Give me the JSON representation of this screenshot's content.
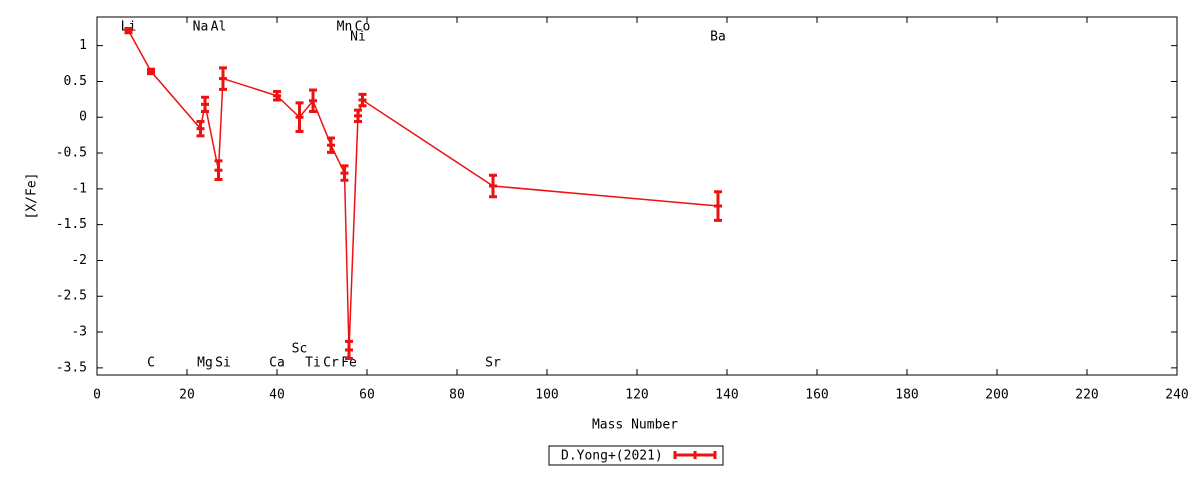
{
  "chart_data": {
    "type": "errorline",
    "xlabel": "Mass Number",
    "ylabel": "[X/Fe]",
    "x": [
      7,
      12,
      23,
      24,
      27,
      28,
      40,
      45,
      48,
      52,
      55,
      56,
      58,
      59,
      88,
      138
    ],
    "point_labels": [
      "Li",
      "C",
      "Na",
      "Mg",
      "Al",
      "Si",
      "Ca",
      "Sc",
      "Ti",
      "Cr",
      "Mn",
      "Fe",
      "Ni",
      "Co",
      "Sr",
      "Ba"
    ],
    "series": [
      {
        "name": "D.Yong+(2021)",
        "color": "#ee1111",
        "values": [
          1.21,
          0.64,
          -0.16,
          0.18,
          -0.74,
          0.54,
          0.3,
          0,
          0.23,
          -0.39,
          -0.78,
          -3.25,
          0.02,
          0.24,
          -0.96,
          -1.24
        ],
        "errors": [
          0.03,
          0.03,
          0.1,
          0.1,
          0.13,
          0.15,
          0.06,
          0.2,
          0.15,
          0.1,
          0.1,
          0.12,
          0.08,
          0.08,
          0.15,
          0.2
        ]
      }
    ],
    "xlim": [
      0,
      240
    ],
    "xticks": [
      0,
      20,
      40,
      60,
      80,
      100,
      120,
      140,
      160,
      180,
      200,
      220,
      240
    ],
    "ylim": [
      -3.6,
      1.4
    ],
    "yticks": [
      1,
      0.5,
      0,
      -0.5,
      -1,
      -1.5,
      -2,
      -2.5,
      -3,
      -3.5
    ],
    "legend": "bottom"
  }
}
